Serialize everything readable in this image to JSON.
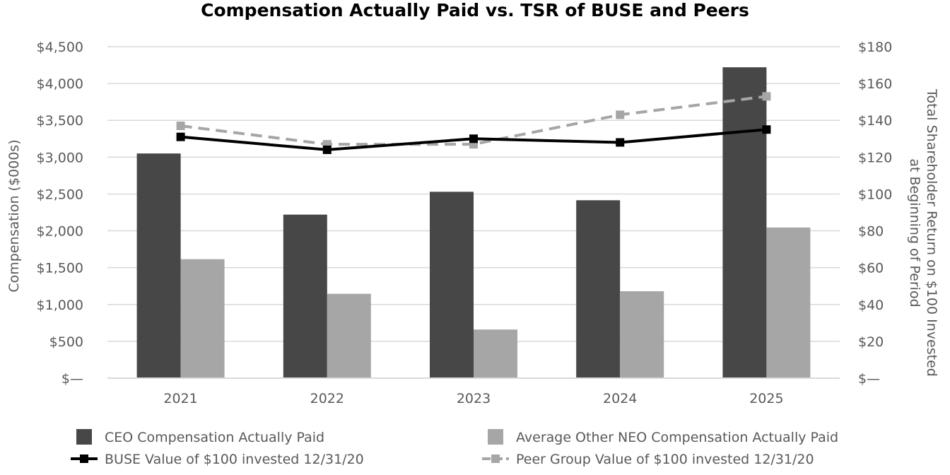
{
  "chart_data": {
    "type": "bar",
    "title": "Compensation Actually Paid vs. TSR of BUSE and Peers",
    "categories": [
      "2021",
      "2022",
      "2023",
      "2024",
      "2025"
    ],
    "series": [
      {
        "name": "CEO Compensation Actually Paid",
        "kind": "bar",
        "axis": "left",
        "color": "#474747",
        "values": [
          3050,
          2220,
          2530,
          2415,
          4220
        ]
      },
      {
        "name": "Average Other NEO Compensation Actually Paid",
        "kind": "bar",
        "axis": "left",
        "color": "#a6a6a6",
        "values": [
          1615,
          1145,
          660,
          1180,
          2045
        ]
      },
      {
        "name": "BUSE Value of $100 invested 12/31/20",
        "kind": "line",
        "axis": "right",
        "color": "#000000",
        "style": "solid",
        "values": [
          131,
          124,
          130,
          128,
          135
        ]
      },
      {
        "name": "Peer Group Value of $100 invested 12/31/20",
        "kind": "line",
        "axis": "right",
        "color": "#a6a6a6",
        "style": "dashed",
        "values": [
          137,
          127,
          127,
          143,
          153
        ]
      }
    ],
    "ylabel": "Compensation ($000s)",
    "y2label_lines": [
      "Total Shareholder Return on $100 Invested",
      "at Beginning of Period"
    ],
    "ylim": [
      0,
      4500
    ],
    "y2lim": [
      0,
      180
    ],
    "yticks": [
      0,
      500,
      1000,
      1500,
      2000,
      2500,
      3000,
      3500,
      4000,
      4500
    ],
    "ytick_labels": [
      "$—",
      "$500",
      "$1,000",
      "$1,500",
      "$2,000",
      "$2,500",
      "$3,000",
      "$3,500",
      "$4,000",
      "$4,500"
    ],
    "y2ticks": [
      0,
      20,
      40,
      60,
      80,
      100,
      120,
      140,
      160,
      180
    ],
    "y2tick_labels": [
      "$—",
      "$20",
      "$40",
      "$60",
      "$80",
      "$100",
      "$120",
      "$140",
      "$160",
      "$180"
    ],
    "grid": true,
    "legend_position": "bottom"
  }
}
